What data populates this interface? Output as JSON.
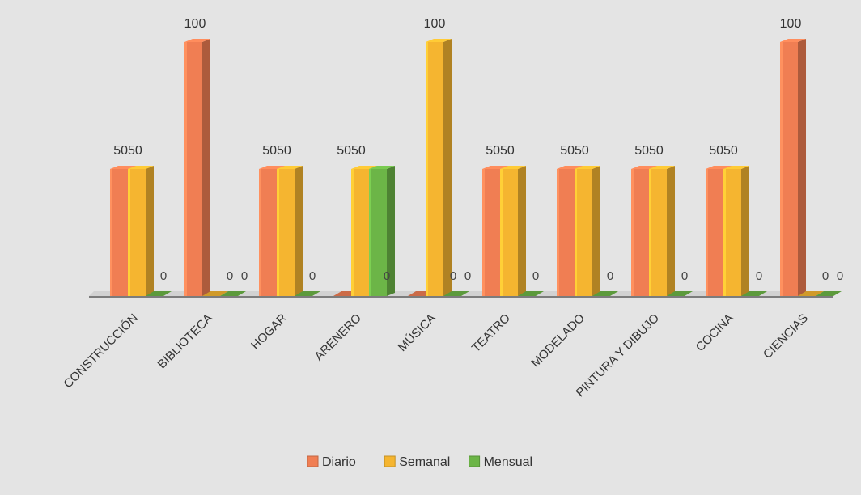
{
  "chart_data": {
    "type": "bar",
    "categories": [
      "CONSTRUCCIÓN",
      "BIBLIOTECA",
      "HOGAR",
      "ARENERO",
      "MÚSICA",
      "TEATRO",
      "MODELADO",
      "PINTURA Y DIBUJO",
      "COCINA",
      "CIENCIAS"
    ],
    "series": [
      {
        "name": "Diario",
        "color": "#f07e53",
        "values": [
          50,
          100,
          50,
          0,
          0,
          50,
          50,
          50,
          50,
          100
        ]
      },
      {
        "name": "Semanal",
        "color": "#f5b530",
        "values": [
          50,
          0,
          50,
          50,
          100,
          50,
          50,
          50,
          50,
          0
        ]
      },
      {
        "name": "Mensual",
        "color": "#6cb547",
        "values": [
          0,
          0,
          0,
          50,
          0,
          0,
          0,
          0,
          0,
          0
        ]
      }
    ],
    "group_labels": [
      "5050",
      "100",
      "5050",
      "5050",
      "100",
      "5050",
      "5050",
      "5050",
      "5050",
      "100"
    ],
    "zero_labels": [
      [
        "0"
      ],
      [
        "0",
        "0"
      ],
      [
        "0"
      ],
      [
        "0"
      ],
      [
        "0",
        "0"
      ],
      [
        "0"
      ],
      [
        "0"
      ],
      [
        "0"
      ],
      [
        "0"
      ],
      [
        "0",
        "0"
      ]
    ],
    "ylim": [
      0,
      100
    ],
    "grid": false,
    "legend_position": "bottom"
  }
}
